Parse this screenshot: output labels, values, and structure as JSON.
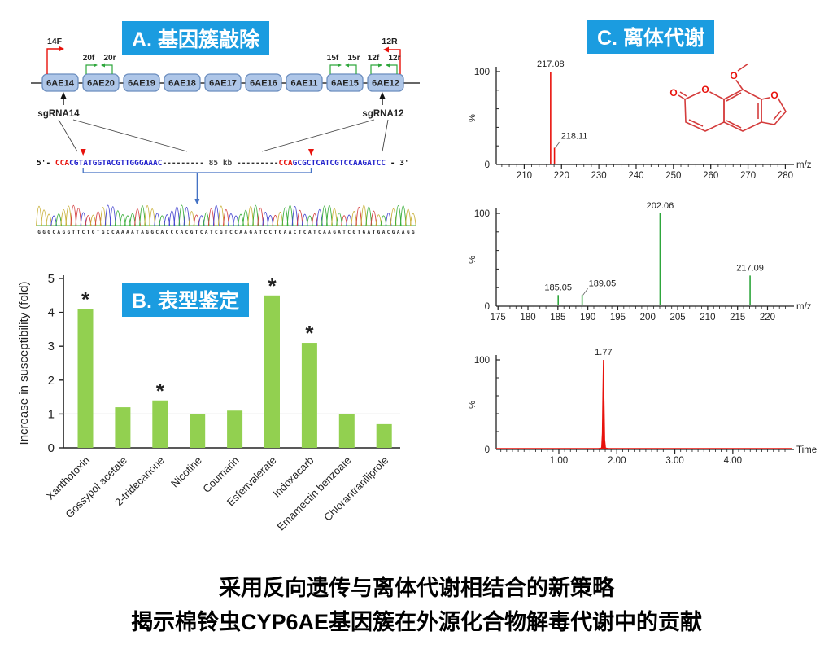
{
  "colors": {
    "header_bg": "#1B9CE0",
    "red": "#E8120C",
    "green": "#2EA63C",
    "bar_green": "#92D050",
    "gene_fill": "#AEC6E8",
    "gene_border": "#6C8EBF",
    "seq_blue": "#2222CC",
    "bracket_blue": "#4472C4",
    "molecule_red": "#D43C3C",
    "trace_base_colors": {
      "A": "#3BAE3B",
      "C": "#4646D0",
      "G": "#C9B13B",
      "T": "#D44040"
    }
  },
  "panelA": {
    "title": "A. 基因簇敲除",
    "genes": [
      "6AE14",
      "6AE20",
      "6AE19",
      "6AE18",
      "6AE17",
      "6AE16",
      "6AE11",
      "6AE15",
      "6AE12"
    ],
    "left_primer": "14F",
    "right_primer": "12R",
    "primer_groups": [
      {
        "forward": "20f",
        "reverse": "20r",
        "gene_index": 1
      },
      {
        "forward": "15f",
        "reverse": "15r",
        "gene_index": 7
      },
      {
        "forward": "12f",
        "reverse": "12r",
        "gene_index": 8
      }
    ],
    "sgRNA_left": "sgRNA14",
    "sgRNA_right": "sgRNA12",
    "gap_label": "85 kb",
    "sequence": {
      "prefix": "5'- ",
      "left_pam": "CCA",
      "left_target": "CGTATGGTACGTTGGGAAAC",
      "dashes": "---------",
      "right_pam": "CCA",
      "right_target": "GCGCTCATCGTCCAAGATCC",
      "suffix": " - 3'"
    },
    "trace_sequence": "GGGCAGGTTCTGTGCCAAAATAGGCACCCACGTCATCGTCCAAGATCCTGAACTCATCAAGATCGTGATGACGAAGG"
  },
  "chart_data": [
    {
      "type": "bar",
      "title": "B. 表型鉴定",
      "ylabel": "Increase in susceptibility (fold)",
      "ylim": [
        0,
        5
      ],
      "yticks": [
        0,
        1,
        2,
        3,
        4,
        5
      ],
      "reference_line": 1,
      "sig_marker": "*",
      "categories": [
        "Xanthotoxin",
        "Gossypol acetate",
        "2-tridecanone",
        "Nicotine",
        "Coumarin",
        "Esfenvalerate",
        "Indoxacarb",
        "Emamectin benzoate",
        "Chlorantraniliprole"
      ],
      "values": [
        4.1,
        1.2,
        1.4,
        1.0,
        1.1,
        4.5,
        3.1,
        1.0,
        0.7
      ],
      "significant": [
        true,
        false,
        true,
        false,
        false,
        true,
        true,
        false,
        false
      ]
    },
    {
      "type": "stem",
      "name": "ms-spectrum-1",
      "color": "red",
      "xlabel": "m/z",
      "ylabel": "%",
      "ylim": [
        0,
        100
      ],
      "xlim": [
        202.5,
        281
      ],
      "xticks": [
        210,
        220,
        230,
        240,
        250,
        260,
        270,
        280
      ],
      "minor_step": 2,
      "peaks": [
        {
          "x": 217.08,
          "y": 100,
          "label": "217.08"
        },
        {
          "x": 218.11,
          "y": 18,
          "label": "218.11",
          "callout": true
        }
      ]
    },
    {
      "type": "stem",
      "name": "ms-spectrum-2",
      "color": "green",
      "xlabel": "m/z",
      "ylabel": "%",
      "ylim": [
        0,
        100
      ],
      "xlim": [
        174.7,
        223.6
      ],
      "xticks": [
        175,
        180,
        185,
        190,
        195,
        200,
        205,
        210,
        215,
        220
      ],
      "minor_step": 1,
      "peaks": [
        {
          "x": 185.05,
          "y": 12,
          "label": "185.05"
        },
        {
          "x": 189.05,
          "y": 12,
          "label": "189.05",
          "callout": true
        },
        {
          "x": 202.06,
          "y": 100,
          "label": "202.06"
        },
        {
          "x": 217.09,
          "y": 33,
          "label": "217.09"
        }
      ]
    },
    {
      "type": "chromatogram",
      "name": "lc-chromatogram",
      "color": "red",
      "xlabel": "Time",
      "ylabel": "%",
      "ylim": [
        0,
        100
      ],
      "xlim": [
        -0.08,
        4.97
      ],
      "xticks": [
        1,
        2,
        3,
        4
      ],
      "xtick_labels": [
        "1.00",
        "2.00",
        "3.00",
        "4.00"
      ],
      "minor_step": 0.1,
      "peaks": [
        {
          "x": 1.77,
          "y": 100,
          "label": "1.77"
        }
      ]
    }
  ],
  "panelC": {
    "title": "C. 离体代谢",
    "atom_label": "O"
  },
  "caption": {
    "line1": "采用反向遗传与离体代谢相结合的新策略",
    "line2": "揭示棉铃虫CYP6AE基因簇在外源化合物解毒代谢中的贡献"
  }
}
